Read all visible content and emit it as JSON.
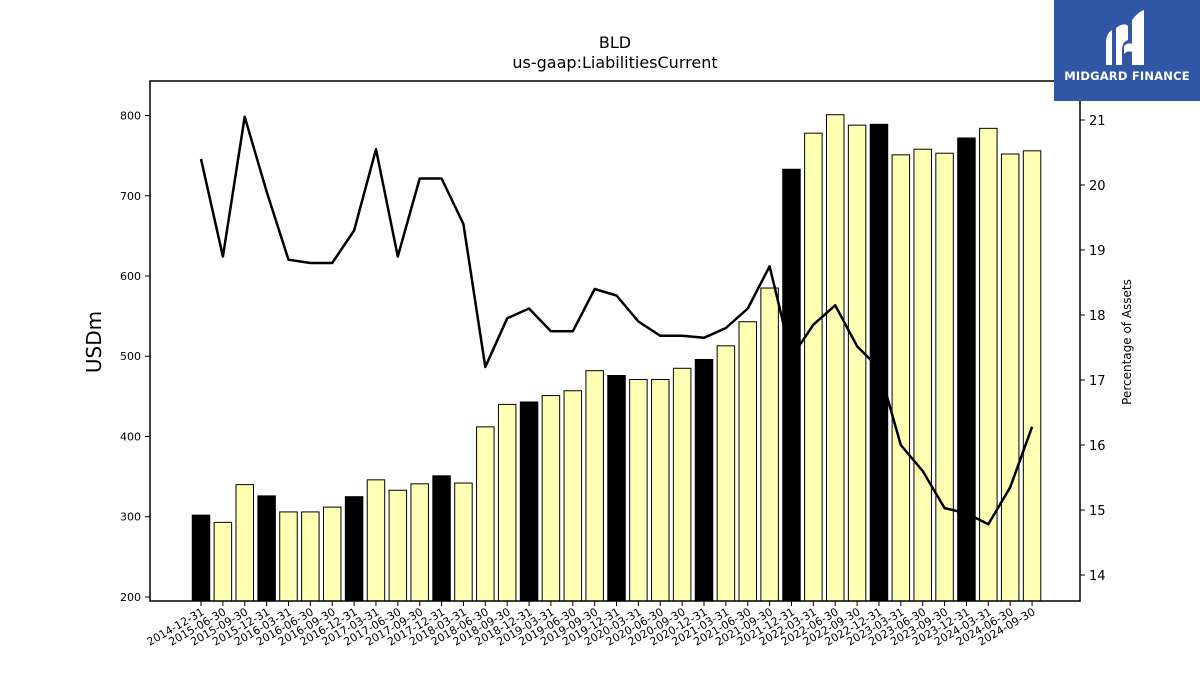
{
  "logo": {
    "text": "MIDGARD FINANCE",
    "background": "#2f57a6"
  },
  "chart_data": {
    "type": "bar",
    "title": "BLD",
    "subtitle": "us-gaap:LiabilitiesCurrent",
    "ylabel": "USDm",
    "y2label": "Percentage of Assets",
    "ylim": [
      195,
      843
    ],
    "y2lim": [
      13.6,
      21.6
    ],
    "yticks": [
      200,
      300,
      400,
      500,
      600,
      700,
      800
    ],
    "y2ticks": [
      14,
      15,
      16,
      17,
      18,
      19,
      20,
      21
    ],
    "colors": {
      "annual_bar": "#000000",
      "quarter_bar": "#ffffb3",
      "line": "#000000"
    },
    "categories": [
      "2014-12-31",
      "2015-06-30",
      "2015-09-30",
      "2015-12-31",
      "2016-03-31",
      "2016-06-30",
      "2016-09-30",
      "2016-12-31",
      "2017-03-31",
      "2017-06-30",
      "2017-09-30",
      "2017-12-31",
      "2018-03-31",
      "2018-06-30",
      "2018-09-30",
      "2018-12-31",
      "2019-03-31",
      "2019-06-30",
      "2019-09-30",
      "2019-12-31",
      "2020-03-31",
      "2020-06-30",
      "2020-09-30",
      "2020-12-31",
      "2021-03-31",
      "2021-06-30",
      "2021-09-30",
      "2021-12-31",
      "2022-03-31",
      "2022-06-30",
      "2022-09-30",
      "2022-12-31",
      "2023-03-31",
      "2023-06-30",
      "2023-09-30",
      "2023-12-31",
      "2024-03-31",
      "2024-06-30",
      "2024-09-30"
    ],
    "annual": [
      true,
      false,
      false,
      true,
      false,
      false,
      false,
      true,
      false,
      false,
      false,
      true,
      false,
      false,
      false,
      true,
      false,
      false,
      false,
      true,
      false,
      false,
      false,
      true,
      false,
      false,
      false,
      true,
      false,
      false,
      false,
      true,
      false,
      false,
      false,
      true,
      false,
      false,
      false
    ],
    "series": [
      {
        "name": "LiabilitiesCurrent",
        "axis": "left",
        "values": [
          302,
          293,
          340,
          326,
          306,
          306,
          312,
          325,
          346,
          333,
          341,
          351,
          342,
          412,
          440,
          443,
          451,
          457,
          482,
          476,
          471,
          471,
          485,
          496,
          513,
          543,
          585,
          733,
          778,
          801,
          788,
          789,
          751,
          758,
          753,
          772,
          784,
          752,
          756
        ]
      },
      {
        "name": "Percentage of Assets",
        "axis": "right",
        "values": [
          20.4,
          18.9,
          21.05,
          19.9,
          18.85,
          18.8,
          18.8,
          19.3,
          20.55,
          18.9,
          20.1,
          20.1,
          19.4,
          17.2,
          17.95,
          18.1,
          17.75,
          17.75,
          18.4,
          18.3,
          17.9,
          17.68,
          17.68,
          17.65,
          17.8,
          18.1,
          18.75,
          17.35,
          17.85,
          18.15,
          17.52,
          17.18,
          16.0,
          15.6,
          15.03,
          14.95,
          14.78,
          15.35,
          16.28
        ]
      }
    ]
  }
}
